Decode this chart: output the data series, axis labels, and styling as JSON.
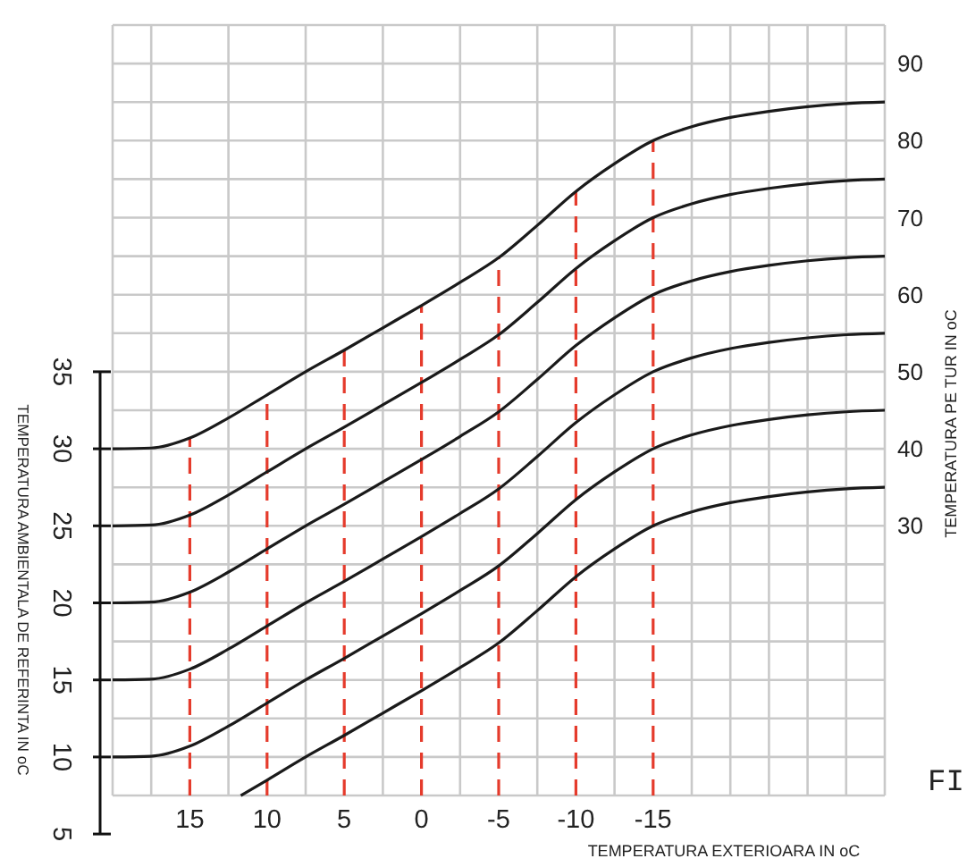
{
  "chart_data": {
    "type": "line",
    "xlabel": "TEMPERATURA EXTERIOARA IN oC",
    "ylabel": "TEMPERATURA AMBIENTALA DE REFERINTA IN oC",
    "y2label": "TEMPERATURA PE TUR IN oC",
    "xlim": [
      20,
      -30
    ],
    "xticks": [
      15,
      10,
      5,
      0,
      -5,
      -10,
      -15
    ],
    "ylim": [
      5,
      35
    ],
    "yticks": [
      5,
      10,
      15,
      20,
      25,
      30,
      35
    ],
    "y2lim": [
      -5,
      95
    ],
    "y2ticks": [
      30,
      40,
      50,
      60,
      70,
      80,
      90
    ],
    "grid": true,
    "marker": "none",
    "line_style": "solid",
    "x": [
      20,
      17.5,
      15,
      12.5,
      10,
      7.5,
      5,
      2.5,
      0,
      -2.5,
      -5,
      -7.5,
      -10,
      -12.5,
      -15,
      -17.5,
      -20,
      -22.5,
      -25,
      -27.5,
      -30
    ],
    "series": [
      {
        "color": "#1a1a1a",
        "axis": "y2",
        "values": [
          40,
          40.1,
          41.4,
          44,
          47,
          50,
          52.8,
          55.7,
          58.6,
          61.6,
          64.8,
          69,
          73.4,
          77,
          80,
          81.8,
          83,
          83.8,
          84.4,
          84.8,
          85
        ]
      },
      {
        "color": "#1a1a1a",
        "axis": "y2",
        "values": [
          30,
          30.1,
          31.4,
          34,
          37,
          40,
          42.8,
          45.7,
          48.6,
          51.6,
          54.8,
          59,
          63.4,
          67,
          70,
          71.8,
          73,
          73.8,
          74.4,
          74.8,
          75
        ]
      },
      {
        "color": "#1a1a1a",
        "axis": "y2",
        "values": [
          20,
          20.1,
          21.4,
          24,
          27,
          30,
          32.8,
          35.7,
          38.6,
          41.6,
          44.8,
          49,
          53.4,
          57,
          60,
          61.8,
          63,
          63.8,
          64.4,
          64.8,
          65
        ]
      },
      {
        "color": "#1a1a1a",
        "axis": "y2",
        "values": [
          10,
          10.1,
          11.4,
          14,
          17,
          20,
          22.8,
          25.7,
          28.6,
          31.6,
          34.8,
          39,
          43.4,
          47,
          50,
          51.8,
          53,
          53.8,
          54.4,
          54.8,
          55
        ]
      },
      {
        "color": "#1a1a1a",
        "axis": "y2",
        "values": [
          0,
          0.1,
          1.4,
          4,
          7,
          10,
          12.8,
          15.7,
          18.6,
          21.6,
          24.8,
          29,
          33.4,
          37,
          40,
          41.8,
          43,
          43.8,
          44.4,
          44.8,
          45
        ]
      },
      {
        "color": "#1a1a1a",
        "axis": "y2",
        "x": [
          11.7,
          10,
          7.5,
          5,
          2.5,
          0,
          -2.5,
          -5,
          -7.5,
          -10,
          -12.5,
          -15,
          -17.5,
          -20,
          -22.5,
          -25,
          -27.5,
          -30
        ],
        "values": [
          -5,
          -3,
          0,
          2.8,
          5.7,
          8.6,
          11.6,
          14.8,
          19,
          23.4,
          27,
          30,
          31.8,
          33,
          33.8,
          34.4,
          34.8,
          35
        ]
      }
    ],
    "ref_lines": [
      {
        "axis": "x",
        "value": 15,
        "color": "#e53b2c",
        "line_style": "dashed"
      },
      {
        "axis": "x",
        "value": 10,
        "color": "#e53b2c",
        "line_style": "dashed"
      },
      {
        "axis": "x",
        "value": 5,
        "color": "#e53b2c",
        "line_style": "dashed"
      },
      {
        "axis": "x",
        "value": 0,
        "color": "#e53b2c",
        "line_style": "dashed"
      },
      {
        "axis": "x",
        "value": -5,
        "color": "#e53b2c",
        "line_style": "dashed"
      },
      {
        "axis": "x",
        "value": -10,
        "color": "#e53b2c",
        "line_style": "dashed"
      },
      {
        "axis": "x",
        "value": -15,
        "color": "#e53b2c",
        "line_style": "dashed"
      }
    ],
    "annotations": [
      "FI"
    ]
  }
}
